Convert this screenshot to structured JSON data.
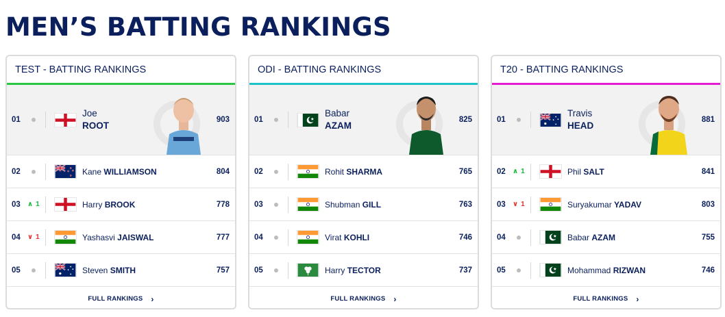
{
  "page_title": "MEN’S BATTING RANKINGS",
  "colors": {
    "test_accent": "#29c63f",
    "odi_accent": "#1dc2c8",
    "t20_accent": "#e41ad4",
    "navy": "#0a1f5c",
    "up": "#17b83c",
    "down": "#e03030"
  },
  "cards": [
    {
      "title": "TEST - BATTING RANKINGS",
      "full_rankings": "FULL RANKINGS",
      "top": {
        "pos": "01",
        "first": "Joe",
        "last": "ROOT",
        "rating": "903",
        "flag": "england"
      },
      "rows": [
        {
          "pos": "02",
          "move": "",
          "first": "Kane",
          "last": "WILLIAMSON",
          "rating": "804",
          "flag": "new-zealand"
        },
        {
          "pos": "03",
          "move": "1",
          "dir": "up",
          "first": "Harry",
          "last": "BROOK",
          "rating": "778",
          "flag": "england"
        },
        {
          "pos": "04",
          "move": "1",
          "dir": "down",
          "first": "Yashasvi",
          "last": "JAISWAL",
          "rating": "777",
          "flag": "india"
        },
        {
          "pos": "05",
          "move": "",
          "first": "Steven",
          "last": "SMITH",
          "rating": "757",
          "flag": "australia"
        }
      ]
    },
    {
      "title": "ODI - BATTING RANKINGS",
      "full_rankings": "FULL RANKINGS",
      "top": {
        "pos": "01",
        "first": "Babar",
        "last": "AZAM",
        "rating": "825",
        "flag": "pakistan"
      },
      "rows": [
        {
          "pos": "02",
          "move": "",
          "first": "Rohit",
          "last": "SHARMA",
          "rating": "765",
          "flag": "india"
        },
        {
          "pos": "03",
          "move": "",
          "first": "Shubman",
          "last": "GILL",
          "rating": "763",
          "flag": "india"
        },
        {
          "pos": "04",
          "move": "",
          "first": "Virat",
          "last": "KOHLI",
          "rating": "746",
          "flag": "india"
        },
        {
          "pos": "05",
          "move": "",
          "first": "Harry",
          "last": "TECTOR",
          "rating": "737",
          "flag": "ireland"
        }
      ]
    },
    {
      "title": "T20 - BATTING RANKINGS",
      "full_rankings": "FULL RANKINGS",
      "top": {
        "pos": "01",
        "first": "Travis",
        "last": "HEAD",
        "rating": "881",
        "flag": "australia"
      },
      "rows": [
        {
          "pos": "02",
          "move": "1",
          "dir": "up",
          "first": "Phil",
          "last": "SALT",
          "rating": "841",
          "flag": "england"
        },
        {
          "pos": "03",
          "move": "1",
          "dir": "down",
          "first": "Suryakumar",
          "last": "YADAV",
          "rating": "803",
          "flag": "india"
        },
        {
          "pos": "04",
          "move": "",
          "first": "Babar",
          "last": "AZAM",
          "rating": "755",
          "flag": "pakistan"
        },
        {
          "pos": "05",
          "move": "",
          "first": "Mohammad",
          "last": "RIZWAN",
          "rating": "746",
          "flag": "pakistan"
        }
      ]
    }
  ]
}
